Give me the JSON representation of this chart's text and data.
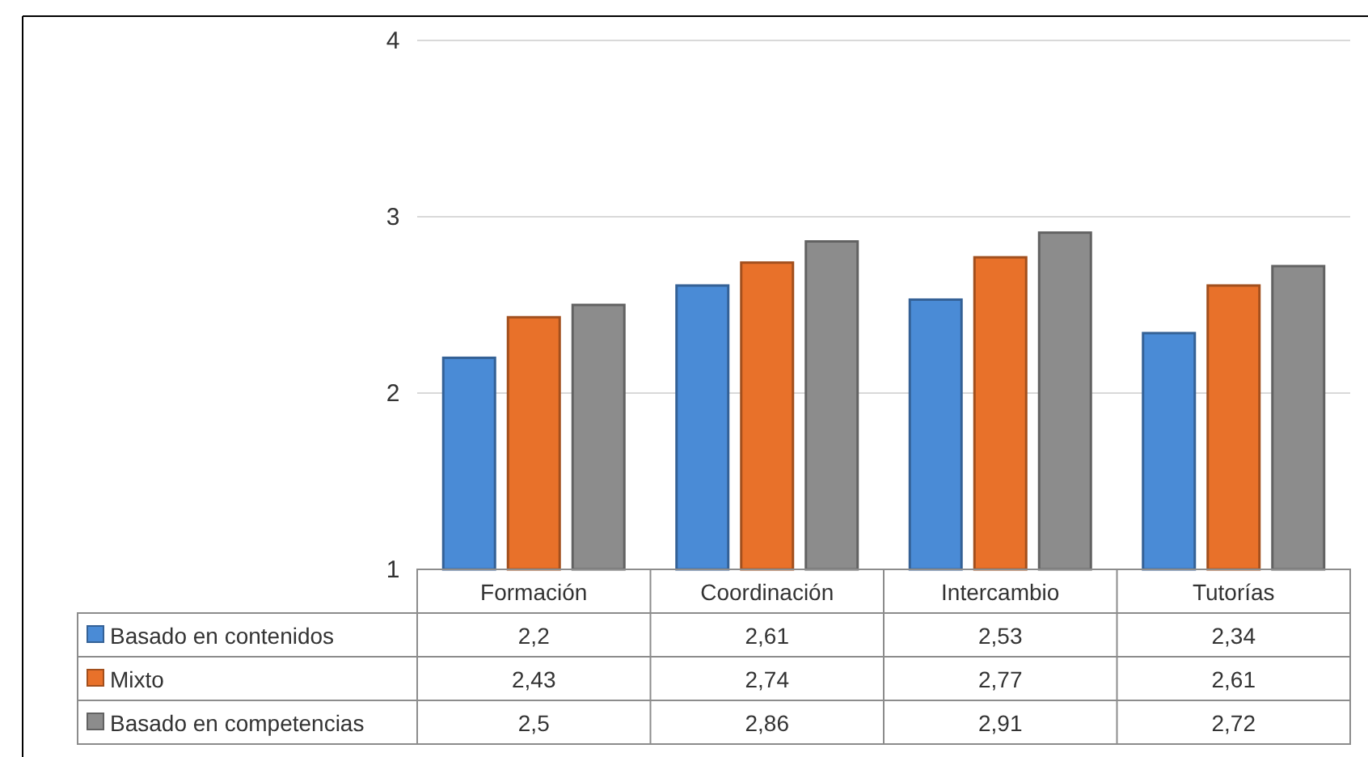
{
  "chart_data": {
    "type": "bar",
    "categories": [
      "Formación",
      "Coordinación",
      "Intercambio",
      "Tutorías"
    ],
    "series": [
      {
        "name": "Basado en contenidos",
        "color": "#4a8bd6",
        "values": [
          2.2,
          2.61,
          2.53,
          2.34
        ],
        "value_labels": [
          "2,2",
          "2,61",
          "2,53",
          "2,34"
        ]
      },
      {
        "name": "Mixto",
        "color": "#e8712a",
        "values": [
          2.43,
          2.74,
          2.77,
          2.61
        ],
        "value_labels": [
          "2,43",
          "2,74",
          "2,77",
          "2,61"
        ]
      },
      {
        "name": "Basado en competencias",
        "color": "#8c8c8c",
        "values": [
          2.5,
          2.86,
          2.91,
          2.72
        ],
        "value_labels": [
          "2,5",
          "2,86",
          "2,91",
          "2,72"
        ]
      }
    ],
    "ylim": [
      1,
      4
    ],
    "yticks": [
      1,
      2,
      3,
      4
    ],
    "grid": "y",
    "legend": "bottom"
  }
}
